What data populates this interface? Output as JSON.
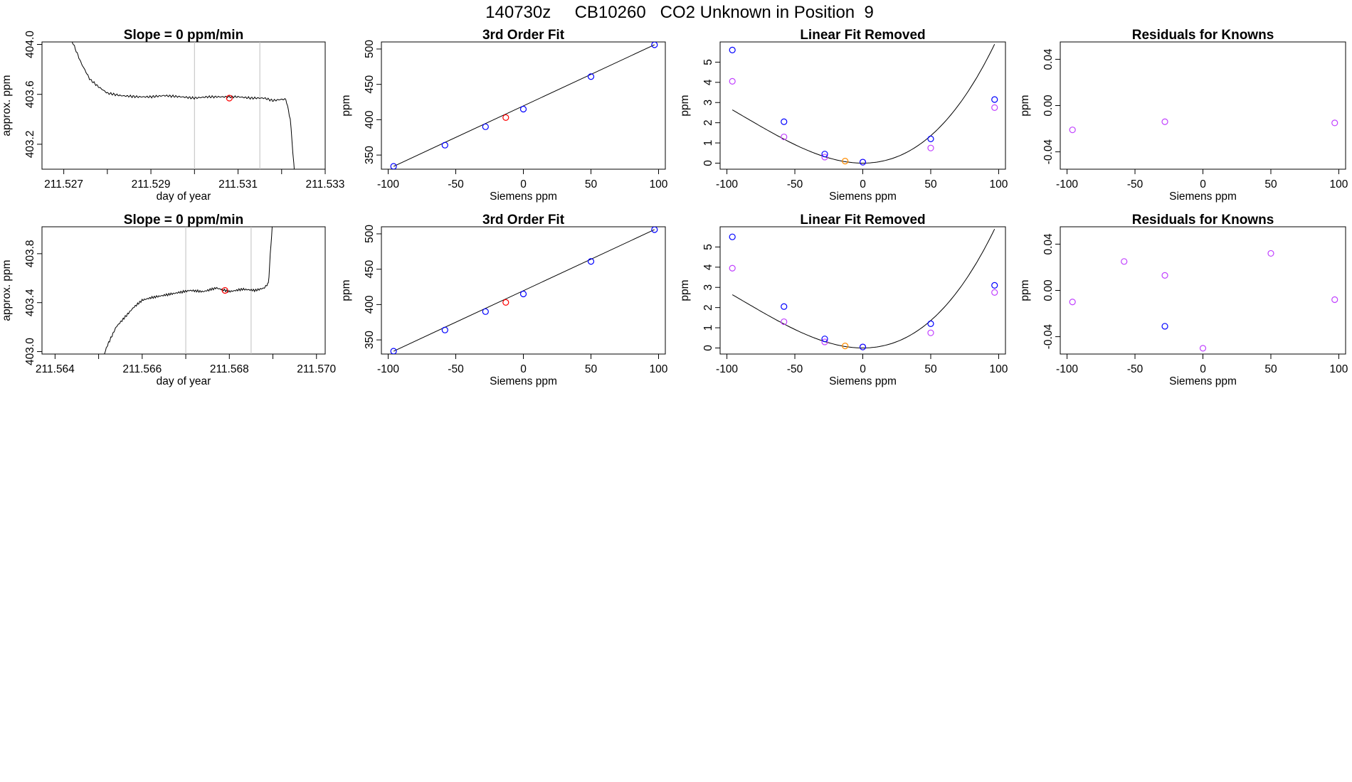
{
  "figure_title": "140730z     CB10260   CO2 Unknown in Position  9",
  "colors": {
    "known": "#0000ff",
    "unknown": "#ff0000",
    "residual": "#c040ff",
    "unknown_linear_removed": "#ff8c00",
    "trace": "#000000",
    "marker_line": "#bfbfbf"
  },
  "chart_data": [
    {
      "type": "line",
      "title": "Slope =  0  ppm/min",
      "xlabel": "day of year",
      "ylabel": "approx. ppm",
      "xlim": [
        211.5265,
        211.533
      ],
      "ylim": [
        403.0,
        404.02
      ],
      "x_ticks": [
        211.527,
        211.528,
        211.529,
        211.53,
        211.531,
        211.532,
        211.533
      ],
      "x_tick_labels": [
        "211.527",
        "",
        "211.529",
        "",
        "211.531",
        "",
        "211.533"
      ],
      "y_ticks": [
        403.2,
        403.6,
        404.0
      ],
      "y_tick_labels": [
        "403.2",
        "403.6",
        "404.0"
      ],
      "vertical_lines": [
        211.53,
        211.5315
      ],
      "trace": {
        "x": [
          211.527,
          211.5272,
          211.5274,
          211.5276,
          211.5278,
          211.528,
          211.5283,
          211.5287,
          211.529,
          211.5293,
          211.5297,
          211.53,
          211.5303,
          211.5306,
          211.531,
          211.5313,
          211.5316,
          211.5318,
          211.532,
          211.5321,
          211.5322,
          211.5323
        ],
        "y": [
          404.1,
          404.02,
          403.85,
          403.72,
          403.66,
          403.61,
          403.59,
          403.58,
          403.58,
          403.59,
          403.58,
          403.57,
          403.58,
          403.58,
          403.58,
          403.57,
          403.57,
          403.55,
          403.56,
          403.56,
          403.4,
          402.95
        ]
      },
      "unknown_point": {
        "x": 211.5308,
        "y": 403.57
      }
    },
    {
      "type": "scatter",
      "title": "3rd Order Fit",
      "xlabel": "Siemens ppm",
      "ylabel": "ppm",
      "xlim": [
        -105,
        105
      ],
      "ylim": [
        330,
        510
      ],
      "x_ticks": [
        -100,
        -50,
        0,
        50,
        100
      ],
      "x_tick_labels": [
        "-100",
        "-50",
        "0",
        "50",
        "100"
      ],
      "y_ticks": [
        350,
        400,
        450,
        500
      ],
      "y_tick_labels": [
        "350",
        "400",
        "450",
        "500"
      ],
      "knowns": {
        "x": [
          -96,
          -58,
          -28,
          0,
          50,
          97
        ],
        "y": [
          334,
          364,
          390,
          415,
          461,
          506
        ]
      },
      "unknown": {
        "x": -13,
        "y": 403
      },
      "fit_line": {
        "x": [
          -96,
          97
        ],
        "y": [
          334,
          506
        ]
      }
    },
    {
      "type": "scatter",
      "title": "Linear Fit Removed",
      "xlabel": "Siemens ppm",
      "ylabel": "ppm",
      "xlim": [
        -105,
        105
      ],
      "ylim": [
        -0.3,
        6.0
      ],
      "x_ticks": [
        -100,
        -50,
        0,
        50,
        100
      ],
      "x_tick_labels": [
        "-100",
        "-50",
        "0",
        "50",
        "100"
      ],
      "y_ticks": [
        0,
        1,
        2,
        3,
        4,
        5
      ],
      "y_tick_labels": [
        "0",
        "1",
        "2",
        "3",
        "4",
        "5"
      ],
      "knowns": {
        "x": [
          -96,
          -58,
          -28,
          0,
          50,
          97
        ],
        "y": [
          5.6,
          2.05,
          0.45,
          0.05,
          1.2,
          3.15
        ]
      },
      "residual_points": {
        "x": [
          -96,
          -58,
          -28,
          0,
          50,
          97
        ],
        "y": [
          4.05,
          1.3,
          0.3,
          0.05,
          0.75,
          2.75
        ]
      },
      "unknown": {
        "x": -13,
        "y": 0.1
      },
      "fit_curve": {
        "coef": [
          0.0,
          0.0,
          0.000455,
          1.76e-06
        ]
      }
    },
    {
      "type": "scatter",
      "title": "Residuals for Knowns",
      "xlabel": "Siemens ppm",
      "ylabel": "ppm",
      "xlim": [
        -105,
        105
      ],
      "ylim": [
        -0.055,
        0.055
      ],
      "x_ticks": [
        -100,
        -50,
        0,
        50,
        100
      ],
      "x_tick_labels": [
        "-100",
        "-50",
        "0",
        "50",
        "100"
      ],
      "y_ticks": [
        -0.04,
        0.0,
        0.04
      ],
      "y_tick_labels": [
        "-0.04",
        "0.00",
        "0.04"
      ],
      "residual_points": {
        "x": [
          -96,
          -28,
          97
        ],
        "y": [
          -0.021,
          -0.014,
          -0.015
        ]
      }
    },
    {
      "type": "line",
      "title": "Slope =  0  ppm/min",
      "xlabel": "day of year",
      "ylabel": "approx. ppm",
      "xlim": [
        211.5637,
        211.5702
      ],
      "ylim": [
        402.98,
        404.02
      ],
      "x_ticks": [
        211.564,
        211.565,
        211.566,
        211.567,
        211.568,
        211.569,
        211.57
      ],
      "x_tick_labels": [
        "211.564",
        "",
        "211.566",
        "",
        "211.568",
        "",
        "211.570"
      ],
      "y_ticks": [
        403.0,
        403.4,
        403.8
      ],
      "y_tick_labels": [
        "403.0",
        "403.4",
        "403.8"
      ],
      "vertical_lines": [
        211.567,
        211.5685
      ],
      "trace": {
        "x": [
          211.5651,
          211.5652,
          211.5654,
          211.5656,
          211.5658,
          211.566,
          211.5662,
          211.5665,
          211.5668,
          211.5671,
          211.5674,
          211.5677,
          211.568,
          211.5683,
          211.5686,
          211.5688,
          211.5689,
          211.56895,
          211.569
        ],
        "y": [
          402.95,
          403.05,
          403.2,
          403.28,
          403.36,
          403.42,
          403.44,
          403.46,
          403.48,
          403.5,
          403.49,
          403.52,
          403.49,
          403.51,
          403.5,
          403.52,
          403.56,
          403.85,
          404.1
        ]
      },
      "unknown_point": {
        "x": 211.5679,
        "y": 403.5
      }
    },
    {
      "type": "scatter",
      "title": "3rd Order Fit",
      "xlabel": "Siemens ppm",
      "ylabel": "ppm",
      "xlim": [
        -105,
        105
      ],
      "ylim": [
        330,
        510
      ],
      "x_ticks": [
        -100,
        -50,
        0,
        50,
        100
      ],
      "x_tick_labels": [
        "-100",
        "-50",
        "0",
        "50",
        "100"
      ],
      "y_ticks": [
        350,
        400,
        450,
        500
      ],
      "y_tick_labels": [
        "350",
        "400",
        "450",
        "500"
      ],
      "knowns": {
        "x": [
          -96,
          -58,
          -28,
          0,
          50,
          97
        ],
        "y": [
          334,
          364,
          390,
          415,
          461,
          506
        ]
      },
      "unknown": {
        "x": -13,
        "y": 403
      },
      "fit_line": {
        "x": [
          -96,
          97
        ],
        "y": [
          334,
          506
        ]
      }
    },
    {
      "type": "scatter",
      "title": "Linear Fit Removed",
      "xlabel": "Siemens ppm",
      "ylabel": "ppm",
      "xlim": [
        -105,
        105
      ],
      "ylim": [
        -0.3,
        6.0
      ],
      "x_ticks": [
        -100,
        -50,
        0,
        50,
        100
      ],
      "x_tick_labels": [
        "-100",
        "-50",
        "0",
        "50",
        "100"
      ],
      "y_ticks": [
        0,
        1,
        2,
        3,
        4,
        5
      ],
      "y_tick_labels": [
        "0",
        "1",
        "2",
        "3",
        "4",
        "5"
      ],
      "knowns": {
        "x": [
          -96,
          -58,
          -28,
          0,
          50,
          97
        ],
        "y": [
          5.5,
          2.05,
          0.45,
          0.05,
          1.2,
          3.1
        ]
      },
      "residual_points": {
        "x": [
          -96,
          -58,
          -28,
          0,
          50,
          97
        ],
        "y": [
          3.95,
          1.3,
          0.3,
          0.05,
          0.75,
          2.75
        ]
      },
      "unknown": {
        "x": -13,
        "y": 0.1
      },
      "fit_curve": {
        "coef": [
          0.0,
          0.0,
          0.000455,
          1.76e-06
        ]
      }
    },
    {
      "type": "scatter",
      "title": "Residuals for Knowns",
      "xlabel": "Siemens ppm",
      "ylabel": "ppm",
      "xlim": [
        -105,
        105
      ],
      "ylim": [
        -0.055,
        0.055
      ],
      "x_ticks": [
        -100,
        -50,
        0,
        50,
        100
      ],
      "x_tick_labels": [
        "-100",
        "-50",
        "0",
        "50",
        "100"
      ],
      "y_ticks": [
        -0.04,
        0.0,
        0.04
      ],
      "y_tick_labels": [
        "-0.04",
        "0.00",
        "0.04"
      ],
      "residual_points": {
        "x": [
          -96,
          -58,
          -28,
          0,
          50,
          97
        ],
        "y": [
          -0.01,
          0.025,
          0.013,
          -0.05,
          0.032,
          -0.008
        ]
      },
      "known_points": {
        "x": [
          -28
        ],
        "y": [
          -0.031
        ]
      }
    }
  ]
}
